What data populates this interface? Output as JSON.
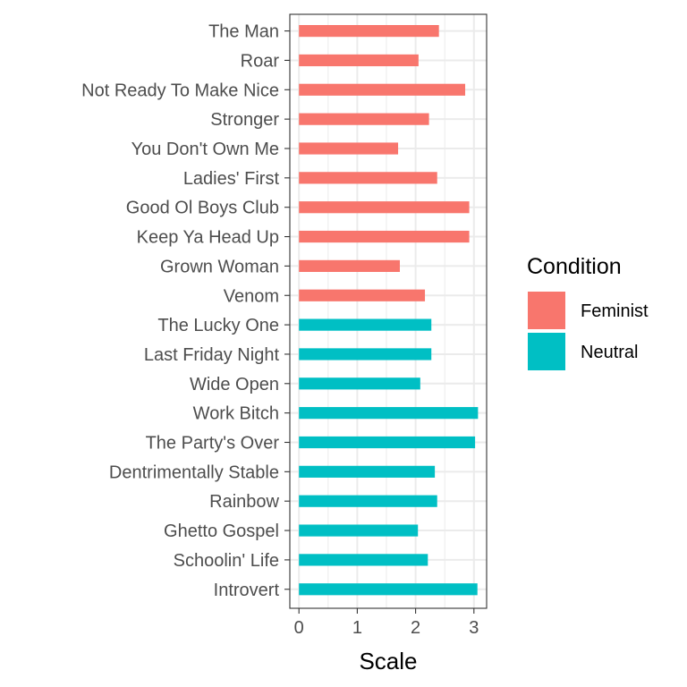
{
  "chart_data": {
    "type": "bar",
    "orientation": "horizontal",
    "xlabel": "Scale",
    "ylabel": "",
    "xlim": [
      -0.05,
      3.15
    ],
    "x_ticks": [
      "0",
      "1",
      "2",
      "3"
    ],
    "grid": true,
    "legend": {
      "title": "Condition",
      "placement": "right",
      "entries": [
        {
          "label": "Feminist",
          "color": "#F8766D"
        },
        {
          "label": "Neutral",
          "color": "#00BFC4"
        }
      ]
    },
    "categories": [
      "The Man",
      "Roar",
      "Not Ready To Make Nice",
      "Stronger",
      "You Don't Own Me",
      "Ladies' First",
      "Good Ol Boys Club",
      "Keep Ya Head Up",
      "Grown Woman",
      "Venom",
      "The Lucky One",
      "Last Friday Night",
      "Wide Open",
      "Work Bitch",
      "The Party's Over",
      "Dentrimentally Stable",
      "Rainbow",
      "Ghetto Gospel",
      "Schoolin' Life",
      "Introvert"
    ],
    "values": [
      2.4,
      2.05,
      2.85,
      2.23,
      1.7,
      2.37,
      2.92,
      2.92,
      1.73,
      2.16,
      2.27,
      2.27,
      2.08,
      3.07,
      3.02,
      2.33,
      2.37,
      2.04,
      2.21,
      3.06
    ],
    "condition": [
      "Feminist",
      "Feminist",
      "Feminist",
      "Feminist",
      "Feminist",
      "Feminist",
      "Feminist",
      "Feminist",
      "Feminist",
      "Feminist",
      "Neutral",
      "Neutral",
      "Neutral",
      "Neutral",
      "Neutral",
      "Neutral",
      "Neutral",
      "Neutral",
      "Neutral",
      "Neutral"
    ]
  }
}
